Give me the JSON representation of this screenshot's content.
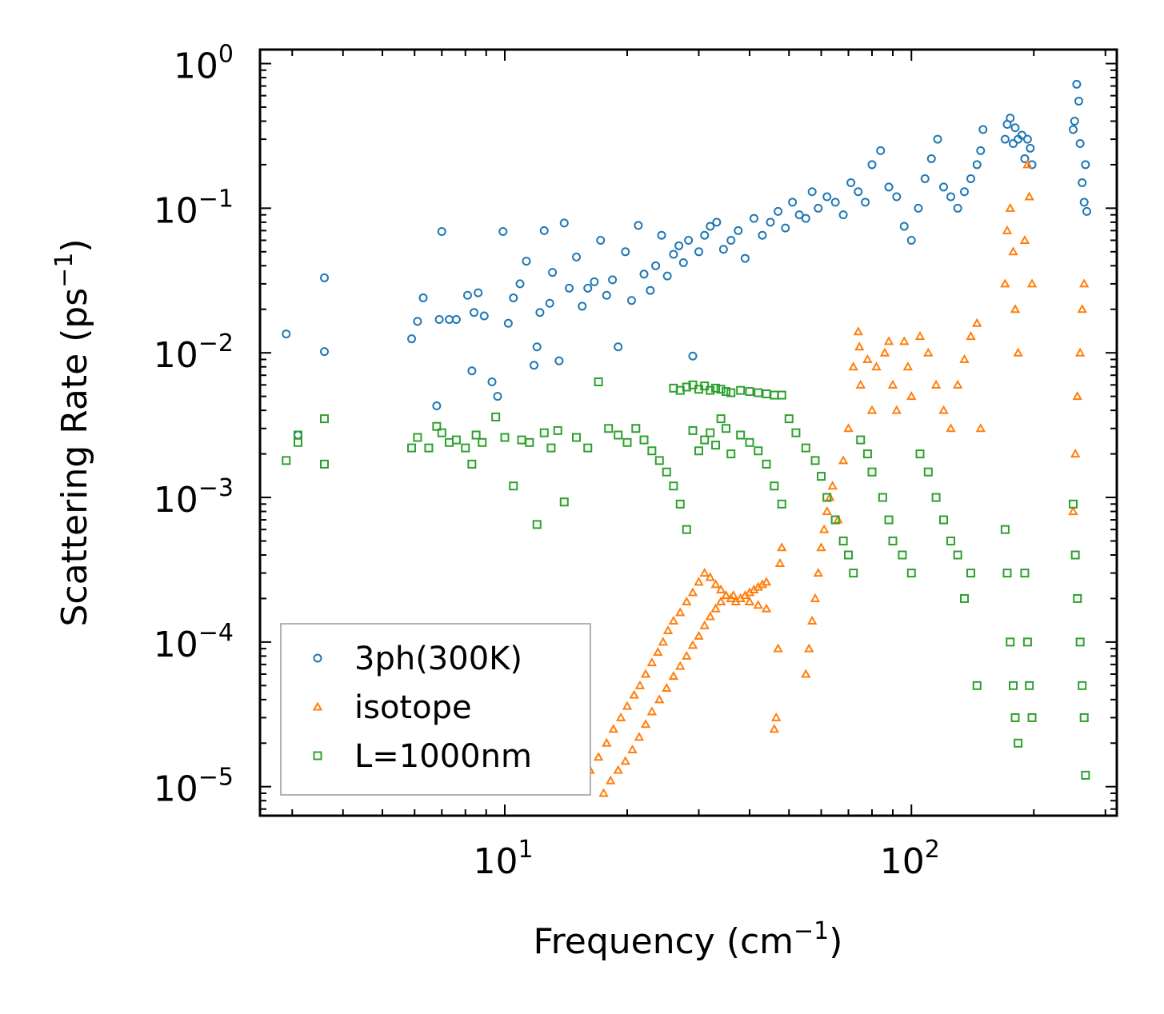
{
  "chart_data": {
    "type": "scatter",
    "xscale": "log",
    "yscale": "log",
    "xlim": [
      2.5,
      320
    ],
    "ylim": [
      6.3e-06,
      1.25
    ],
    "xlabel": {
      "main": "Frequency (cm",
      "sup": "−1",
      "close": ")"
    },
    "ylabel": {
      "main": "Scattering Rate (ps",
      "sup": "−1",
      "close": ")"
    },
    "xticks": [
      {
        "value": 10,
        "base": "10",
        "exp": "1"
      },
      {
        "value": 100,
        "base": "10",
        "exp": "2"
      }
    ],
    "yticks": [
      {
        "value": 1,
        "base": "10",
        "exp": "0"
      },
      {
        "value": 0.1,
        "base": "10",
        "exp": "−1"
      },
      {
        "value": 0.01,
        "base": "10",
        "exp": "−2"
      },
      {
        "value": 0.001,
        "base": "10",
        "exp": "−3"
      },
      {
        "value": 0.0001,
        "base": "10",
        "exp": "−4"
      },
      {
        "value": 1e-05,
        "base": "10",
        "exp": "−5"
      }
    ],
    "legend_position": "lower-left",
    "series": [
      {
        "name": "3ph(300K)",
        "marker": "circle",
        "color": "#1f77b4",
        "x": [
          2.9,
          3.1,
          3.6,
          3.6,
          5.9,
          6.1,
          6.3,
          6.8,
          6.9,
          7.0,
          7.3,
          7.6,
          8.1,
          8.3,
          8.4,
          8.6,
          8.9,
          9.3,
          9.6,
          9.9,
          10.2,
          10.5,
          10.9,
          11.3,
          11.8,
          12.0,
          12.2,
          12.5,
          12.9,
          13.1,
          13.6,
          14.0,
          14.4,
          15.0,
          15.5,
          16.0,
          16.6,
          17.2,
          17.8,
          18.4,
          19.0,
          19.8,
          20.5,
          21.3,
          22.0,
          22.8,
          23.5,
          24.3,
          25.1,
          26.0,
          26.8,
          27.5,
          28.3,
          29.0,
          30.0,
          31.0,
          32.0,
          33.2,
          34.5,
          36.0,
          37.5,
          39.0,
          41.0,
          43.0,
          45.0,
          47.0,
          49.0,
          51.0,
          53.0,
          55.0,
          57.0,
          59.0,
          62.0,
          65.0,
          68.0,
          71.0,
          74.0,
          77.0,
          80.0,
          84.0,
          88.0,
          92.0,
          96.0,
          100.0,
          104.0,
          108.0,
          112.0,
          116.0,
          120.0,
          125.0,
          130.0,
          135.0,
          140.0,
          145.0,
          148.0,
          150.0,
          170.0,
          172.0,
          175.0,
          178.0,
          180.0,
          183.0,
          187.0,
          190.0,
          193.0,
          196.0,
          198.0,
          250.0,
          252.0,
          255.0,
          258.0,
          260.0,
          263.0,
          266.0,
          268.0,
          270.0
        ],
        "y": [
          0.0135,
          0.0027,
          0.0102,
          0.033,
          0.0125,
          0.0165,
          0.024,
          0.0043,
          0.017,
          0.069,
          0.017,
          0.017,
          0.025,
          0.0075,
          0.019,
          0.026,
          0.018,
          0.0063,
          0.005,
          0.069,
          0.016,
          0.024,
          0.03,
          0.043,
          0.0082,
          0.011,
          0.019,
          0.07,
          0.022,
          0.036,
          0.0088,
          0.079,
          0.028,
          0.046,
          0.021,
          0.028,
          0.031,
          0.06,
          0.025,
          0.032,
          0.011,
          0.05,
          0.023,
          0.076,
          0.035,
          0.027,
          0.04,
          0.065,
          0.034,
          0.048,
          0.055,
          0.042,
          0.06,
          0.0095,
          0.05,
          0.065,
          0.075,
          0.08,
          0.052,
          0.06,
          0.07,
          0.045,
          0.085,
          0.065,
          0.08,
          0.095,
          0.073,
          0.11,
          0.09,
          0.085,
          0.13,
          0.1,
          0.12,
          0.11,
          0.09,
          0.15,
          0.13,
          0.11,
          0.2,
          0.25,
          0.14,
          0.12,
          0.075,
          0.06,
          0.1,
          0.16,
          0.22,
          0.3,
          0.14,
          0.12,
          0.1,
          0.13,
          0.16,
          0.2,
          0.25,
          0.35,
          0.3,
          0.38,
          0.42,
          0.28,
          0.36,
          0.3,
          0.32,
          0.22,
          0.3,
          0.26,
          0.2,
          0.35,
          0.4,
          0.72,
          0.55,
          0.28,
          0.15,
          0.11,
          0.2,
          0.095
        ]
      },
      {
        "name": "isotope",
        "marker": "triangle",
        "color": "#ff7f0e",
        "x": [
          15.5,
          16.2,
          17.0,
          17.8,
          18.5,
          19.3,
          20.0,
          20.8,
          21.5,
          22.2,
          23.0,
          23.8,
          24.5,
          25.2,
          26.0,
          27.0,
          28.0,
          29.0,
          30.0,
          31.0,
          32.0,
          33.0,
          34.0,
          35.0,
          36.0,
          37.0,
          38.0,
          39.0,
          40.0,
          41.0,
          42.0,
          43.0,
          44.0,
          17.5,
          18.2,
          19.0,
          19.8,
          20.6,
          21.4,
          22.2,
          23.0,
          24.0,
          25.0,
          26.0,
          27.0,
          28.0,
          29.0,
          30.0,
          31.0,
          32.0,
          33.0,
          34.0,
          35.0,
          36.5,
          38.0,
          40.0,
          42.0,
          44.0,
          46.0,
          46.5,
          47.0,
          47.5,
          48.0,
          55.0,
          56.0,
          57.0,
          58.0,
          59.0,
          60.0,
          61.0,
          62.0,
          63.0,
          64.0,
          66.0,
          68.0,
          70.0,
          72.0,
          74.0,
          74.5,
          75.0,
          78.0,
          80.0,
          82.0,
          86.0,
          88.0,
          90.0,
          92.0,
          96.0,
          98.0,
          100.0,
          105.0,
          110.0,
          115.0,
          120.0,
          125.0,
          130.0,
          135.0,
          140.0,
          145.0,
          148.0,
          170.0,
          172.0,
          175.0,
          178.0,
          180.0,
          183.0,
          190.0,
          193.0,
          195.0,
          198.0,
          250.0,
          253.0,
          256.0,
          260.0,
          263.0,
          266.0
        ],
        "y": [
          1.05e-05,
          1.3e-05,
          1.6e-05,
          2e-05,
          2.5e-05,
          3e-05,
          3.6e-05,
          4.3e-05,
          5e-05,
          6e-05,
          7.2e-05,
          8.5e-05,
          0.0001,
          0.00012,
          0.00014,
          0.00016,
          0.00019,
          0.00022,
          0.00026,
          0.0003,
          0.00028,
          0.00025,
          0.00023,
          0.00021,
          0.0002,
          0.00019,
          0.0002,
          0.00021,
          0.00022,
          0.00023,
          0.00024,
          0.00025,
          0.00026,
          9e-06,
          1.1e-05,
          1.3e-05,
          1.5e-05,
          1.8e-05,
          2.2e-05,
          2.7e-05,
          3.3e-05,
          4e-05,
          4.8e-05,
          5.8e-05,
          6.8e-05,
          8e-05,
          9.5e-05,
          0.00011,
          0.00013,
          0.00015,
          0.00017,
          0.00019,
          0.00021,
          0.00021,
          0.0002,
          0.00019,
          0.00018,
          0.00017,
          2.5e-05,
          3e-05,
          9e-05,
          0.00035,
          0.00045,
          6e-05,
          9e-05,
          0.00014,
          0.0002,
          0.0003,
          0.00045,
          0.0006,
          0.0008,
          0.001,
          0.0012,
          0.0007,
          0.0018,
          0.003,
          0.008,
          0.014,
          0.011,
          0.006,
          0.009,
          0.004,
          0.008,
          0.01,
          0.012,
          0.006,
          0.004,
          0.012,
          0.008,
          0.005,
          0.013,
          0.01,
          0.006,
          0.004,
          0.003,
          0.006,
          0.009,
          0.013,
          0.016,
          0.003,
          0.03,
          0.07,
          0.1,
          0.05,
          0.02,
          0.01,
          0.06,
          0.2,
          0.12,
          0.03,
          0.0008,
          0.002,
          0.005,
          0.01,
          0.02,
          0.03
        ]
      },
      {
        "name": "L=1000nm",
        "marker": "square",
        "color": "#2ca02c",
        "x": [
          2.9,
          3.1,
          3.1,
          3.6,
          3.6,
          5.9,
          6.1,
          6.5,
          6.8,
          7.0,
          7.3,
          7.6,
          8.0,
          8.3,
          8.5,
          8.8,
          9.5,
          10.0,
          10.5,
          11.0,
          11.5,
          12.0,
          12.5,
          13.0,
          13.5,
          14.0,
          15.0,
          16.0,
          17.0,
          18.0,
          19.0,
          20.0,
          21.0,
          22.0,
          23.0,
          24.0,
          25.0,
          26.0,
          27.0,
          28.0,
          29.0,
          30.0,
          31.0,
          32.0,
          33.0,
          34.0,
          35.0,
          36.0,
          38.0,
          40.0,
          42.0,
          44.0,
          46.0,
          48.0,
          50.0,
          52.0,
          55.0,
          58.0,
          60.0,
          62.0,
          65.0,
          68.0,
          70.0,
          72.0,
          75.0,
          78.0,
          80.0,
          85.0,
          88.0,
          90.0,
          95.0,
          100.0,
          105.0,
          110.0,
          115.0,
          120.0,
          125.0,
          130.0,
          135.0,
          140.0,
          145.0,
          170.0,
          172.0,
          175.0,
          178.0,
          180.0,
          183.0,
          190.0,
          193.0,
          195.0,
          198.0,
          250.0,
          253.0,
          256.0,
          260.0,
          263.0,
          266.0,
          268.0,
          26.0,
          27.0,
          28.0,
          29.0,
          30.0,
          31.0,
          32.0,
          33.0,
          34.0,
          35.0,
          36.0,
          38.0,
          40.0,
          42.0,
          44.0,
          46.0,
          48.0
        ],
        "y": [
          0.0018,
          0.0027,
          0.0024,
          0.0035,
          0.0017,
          0.0022,
          0.0026,
          0.0022,
          0.0031,
          0.0028,
          0.0024,
          0.0025,
          0.0022,
          0.0017,
          0.0027,
          0.0024,
          0.0036,
          0.0026,
          0.0012,
          0.0025,
          0.0024,
          0.00065,
          0.0028,
          0.0022,
          0.0029,
          0.00093,
          0.0026,
          0.0022,
          0.0063,
          0.003,
          0.0027,
          0.0024,
          0.003,
          0.0025,
          0.0021,
          0.0018,
          0.0015,
          0.0012,
          0.0009,
          0.0006,
          0.0029,
          0.0021,
          0.0025,
          0.0028,
          0.0023,
          0.0035,
          0.003,
          0.002,
          0.0027,
          0.0024,
          0.0021,
          0.0017,
          0.0012,
          0.0009,
          0.0035,
          0.0028,
          0.0022,
          0.0018,
          0.0014,
          0.001,
          0.0007,
          0.0005,
          0.0004,
          0.0003,
          0.0025,
          0.002,
          0.0015,
          0.001,
          0.0007,
          0.0005,
          0.0004,
          0.0003,
          0.002,
          0.0015,
          0.001,
          0.0007,
          0.0005,
          0.0004,
          0.0002,
          0.0003,
          5e-05,
          0.0006,
          0.0003,
          0.0001,
          5e-05,
          3e-05,
          2e-05,
          0.0003,
          0.0001,
          5e-05,
          3e-05,
          0.0009,
          0.0004,
          0.0002,
          0.0001,
          5e-05,
          3e-05,
          1.2e-05,
          0.0057,
          0.0055,
          0.0058,
          0.006,
          0.0056,
          0.0059,
          0.0055,
          0.0057,
          0.0056,
          0.0054,
          0.0053,
          0.0055,
          0.0054,
          0.0053,
          0.0052,
          0.0051,
          0.0051
        ]
      }
    ]
  }
}
